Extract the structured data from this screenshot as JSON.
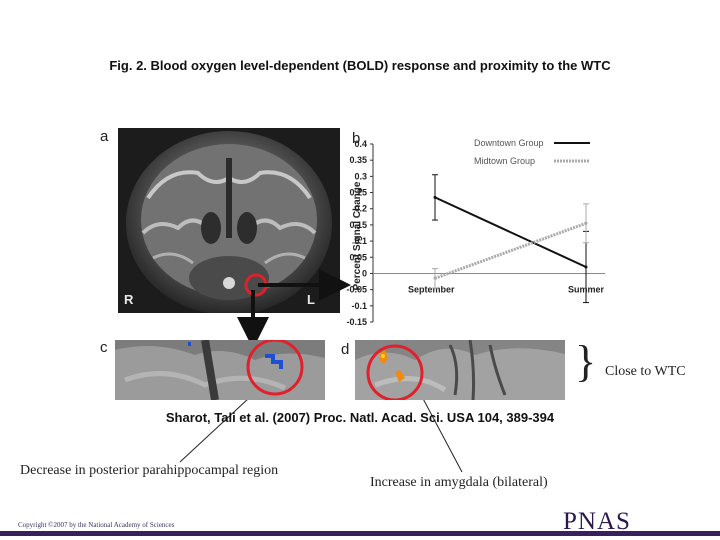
{
  "figure": {
    "title": "Fig. 2. Blood oxygen level-dependent (BOLD) response and proximity to the WTC",
    "citation": "Sharot, Tali et al. (2007) Proc. Natl. Acad. Sci. USA 104, 389-394"
  },
  "panels": {
    "a": {
      "letter": "a",
      "left_marker": "R",
      "right_marker": "L"
    },
    "b": {
      "letter": "b"
    },
    "c": {
      "letter": "c"
    },
    "d": {
      "letter": "d"
    }
  },
  "annotations": {
    "close_to_wtc": "Close to WTC",
    "decrease": "Decrease in posterior parahippocampal region",
    "increase": "Increase in amygdala (bilateral)"
  },
  "footer": {
    "copyright": "Copyright ©2007 by the National Academy of Sciences",
    "logo": "PNAS"
  },
  "colors": {
    "downtown_line": "#111111",
    "midtown_line": "#aaaaaa",
    "highlight_ring": "#e0202a",
    "footer_bar": "#3a1f5e"
  },
  "chart_data": {
    "type": "line",
    "ylabel": "Percent Signal Change",
    "categories": [
      "September",
      "Summer"
    ],
    "ylim": [
      -0.15,
      0.4
    ],
    "yticks": [
      0.4,
      0.35,
      0.3,
      0.25,
      0.2,
      0.15,
      0.1,
      0.05,
      0,
      -0.05,
      -0.1,
      -0.15
    ],
    "ytick_labels": [
      "0.4",
      "0.35",
      "0.3",
      "0.25",
      "0.2",
      "0.15",
      "0.1",
      "0.05",
      "0",
      "-0.05",
      "-0.1",
      "-0.15"
    ],
    "legend_position": "top-right",
    "series": [
      {
        "name": "Downtown Group",
        "values": [
          0.235,
          0.02
        ],
        "error": [
          0.07,
          0.11
        ],
        "style": "solid",
        "color": "#111111"
      },
      {
        "name": "Midtown Group",
        "values": [
          -0.015,
          0.155
        ],
        "error": [
          0.03,
          0.06
        ],
        "style": "dashed",
        "color": "#aaaaaa"
      }
    ]
  }
}
